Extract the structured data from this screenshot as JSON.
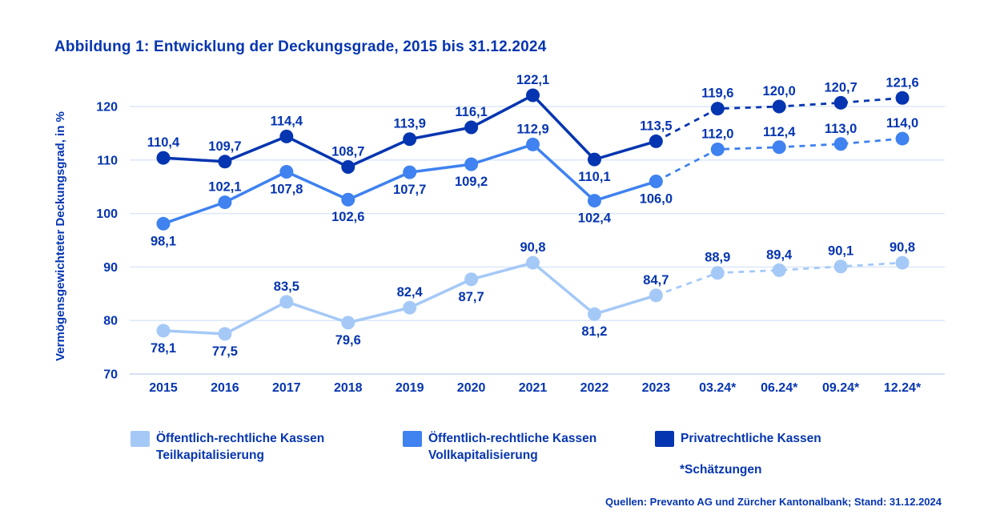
{
  "title": "Abbildung 1: Entwicklung der Deckungsgrade, 2015 bis 31.12.2024",
  "colors": {
    "accent_text": "#0535b0",
    "dark_blue": "#0535b0",
    "medium_blue": "#3f82f0",
    "light_blue": "#a5c9f7",
    "gridline": "#dbe7f8",
    "baseline": "#c5d6ee"
  },
  "chart_data": {
    "type": "line",
    "title": "Abbildung 1: Entwicklung der Deckungsgrade, 2015 bis 31.12.2024",
    "xlabel": "",
    "ylabel": "Vermögensgewichteter Deckungsgrad, in %",
    "categories": [
      "2015",
      "2016",
      "2017",
      "2018",
      "2019",
      "2020",
      "2021",
      "2022",
      "2023",
      "03.24*",
      "06.24*",
      "09.24*",
      "12.24*"
    ],
    "yticks": [
      70,
      80,
      90,
      100,
      110,
      120
    ],
    "ylim": [
      67,
      126
    ],
    "grid": true,
    "legend_position": "bottom",
    "decimal_separator": ",",
    "estimate_from_index": 8,
    "estimate_style": "dashed",
    "series": [
      {
        "name": "Öffentlich-rechtliche Kassen Teilkapitalisierung",
        "color_key": "light_blue",
        "values": [
          78.1,
          77.5,
          83.5,
          79.6,
          82.4,
          87.7,
          90.8,
          81.2,
          84.7,
          88.9,
          89.4,
          90.1,
          90.8
        ],
        "label_pos": [
          "below",
          "below",
          "above",
          "below",
          "above",
          "below",
          "above",
          "below",
          "above",
          "above",
          "above",
          "above",
          "above"
        ]
      },
      {
        "name": "Öffentlich-rechtliche Kassen Vollkapitalisierung",
        "color_key": "medium_blue",
        "values": [
          98.1,
          102.1,
          107.8,
          102.6,
          107.7,
          109.2,
          112.9,
          102.4,
          106.0,
          112.0,
          112.4,
          113.0,
          114.0
        ],
        "label_pos": [
          "below",
          "above",
          "below",
          "below",
          "below",
          "below",
          "above",
          "below",
          "below",
          "above",
          "above",
          "above",
          "above"
        ]
      },
      {
        "name": "Privatrechtliche Kassen",
        "color_key": "dark_blue",
        "values": [
          110.4,
          109.7,
          114.4,
          108.7,
          113.9,
          116.1,
          122.1,
          110.1,
          113.5,
          119.6,
          120.0,
          120.7,
          121.6
        ],
        "label_pos": [
          "above",
          "above",
          "above",
          "above",
          "above",
          "above",
          "above",
          "below",
          "above",
          "above",
          "above",
          "above",
          "above"
        ]
      }
    ]
  },
  "legend": {
    "items": [
      {
        "label_line1": "Öffentlich-rechtliche Kassen",
        "label_line2": "Teilkapitalisierung",
        "color_key": "light_blue"
      },
      {
        "label_line1": "Öffentlich-rechtliche Kassen",
        "label_line2": "Vollkapitalisierung",
        "color_key": "medium_blue"
      },
      {
        "label_line1": "Privatrechtliche Kassen",
        "label_line2": "",
        "color_key": "dark_blue"
      }
    ],
    "footnote": "*Schätzungen"
  },
  "source": "Quellen: Prevanto AG und Zürcher Kantonalbank; Stand: 31.12.2024"
}
